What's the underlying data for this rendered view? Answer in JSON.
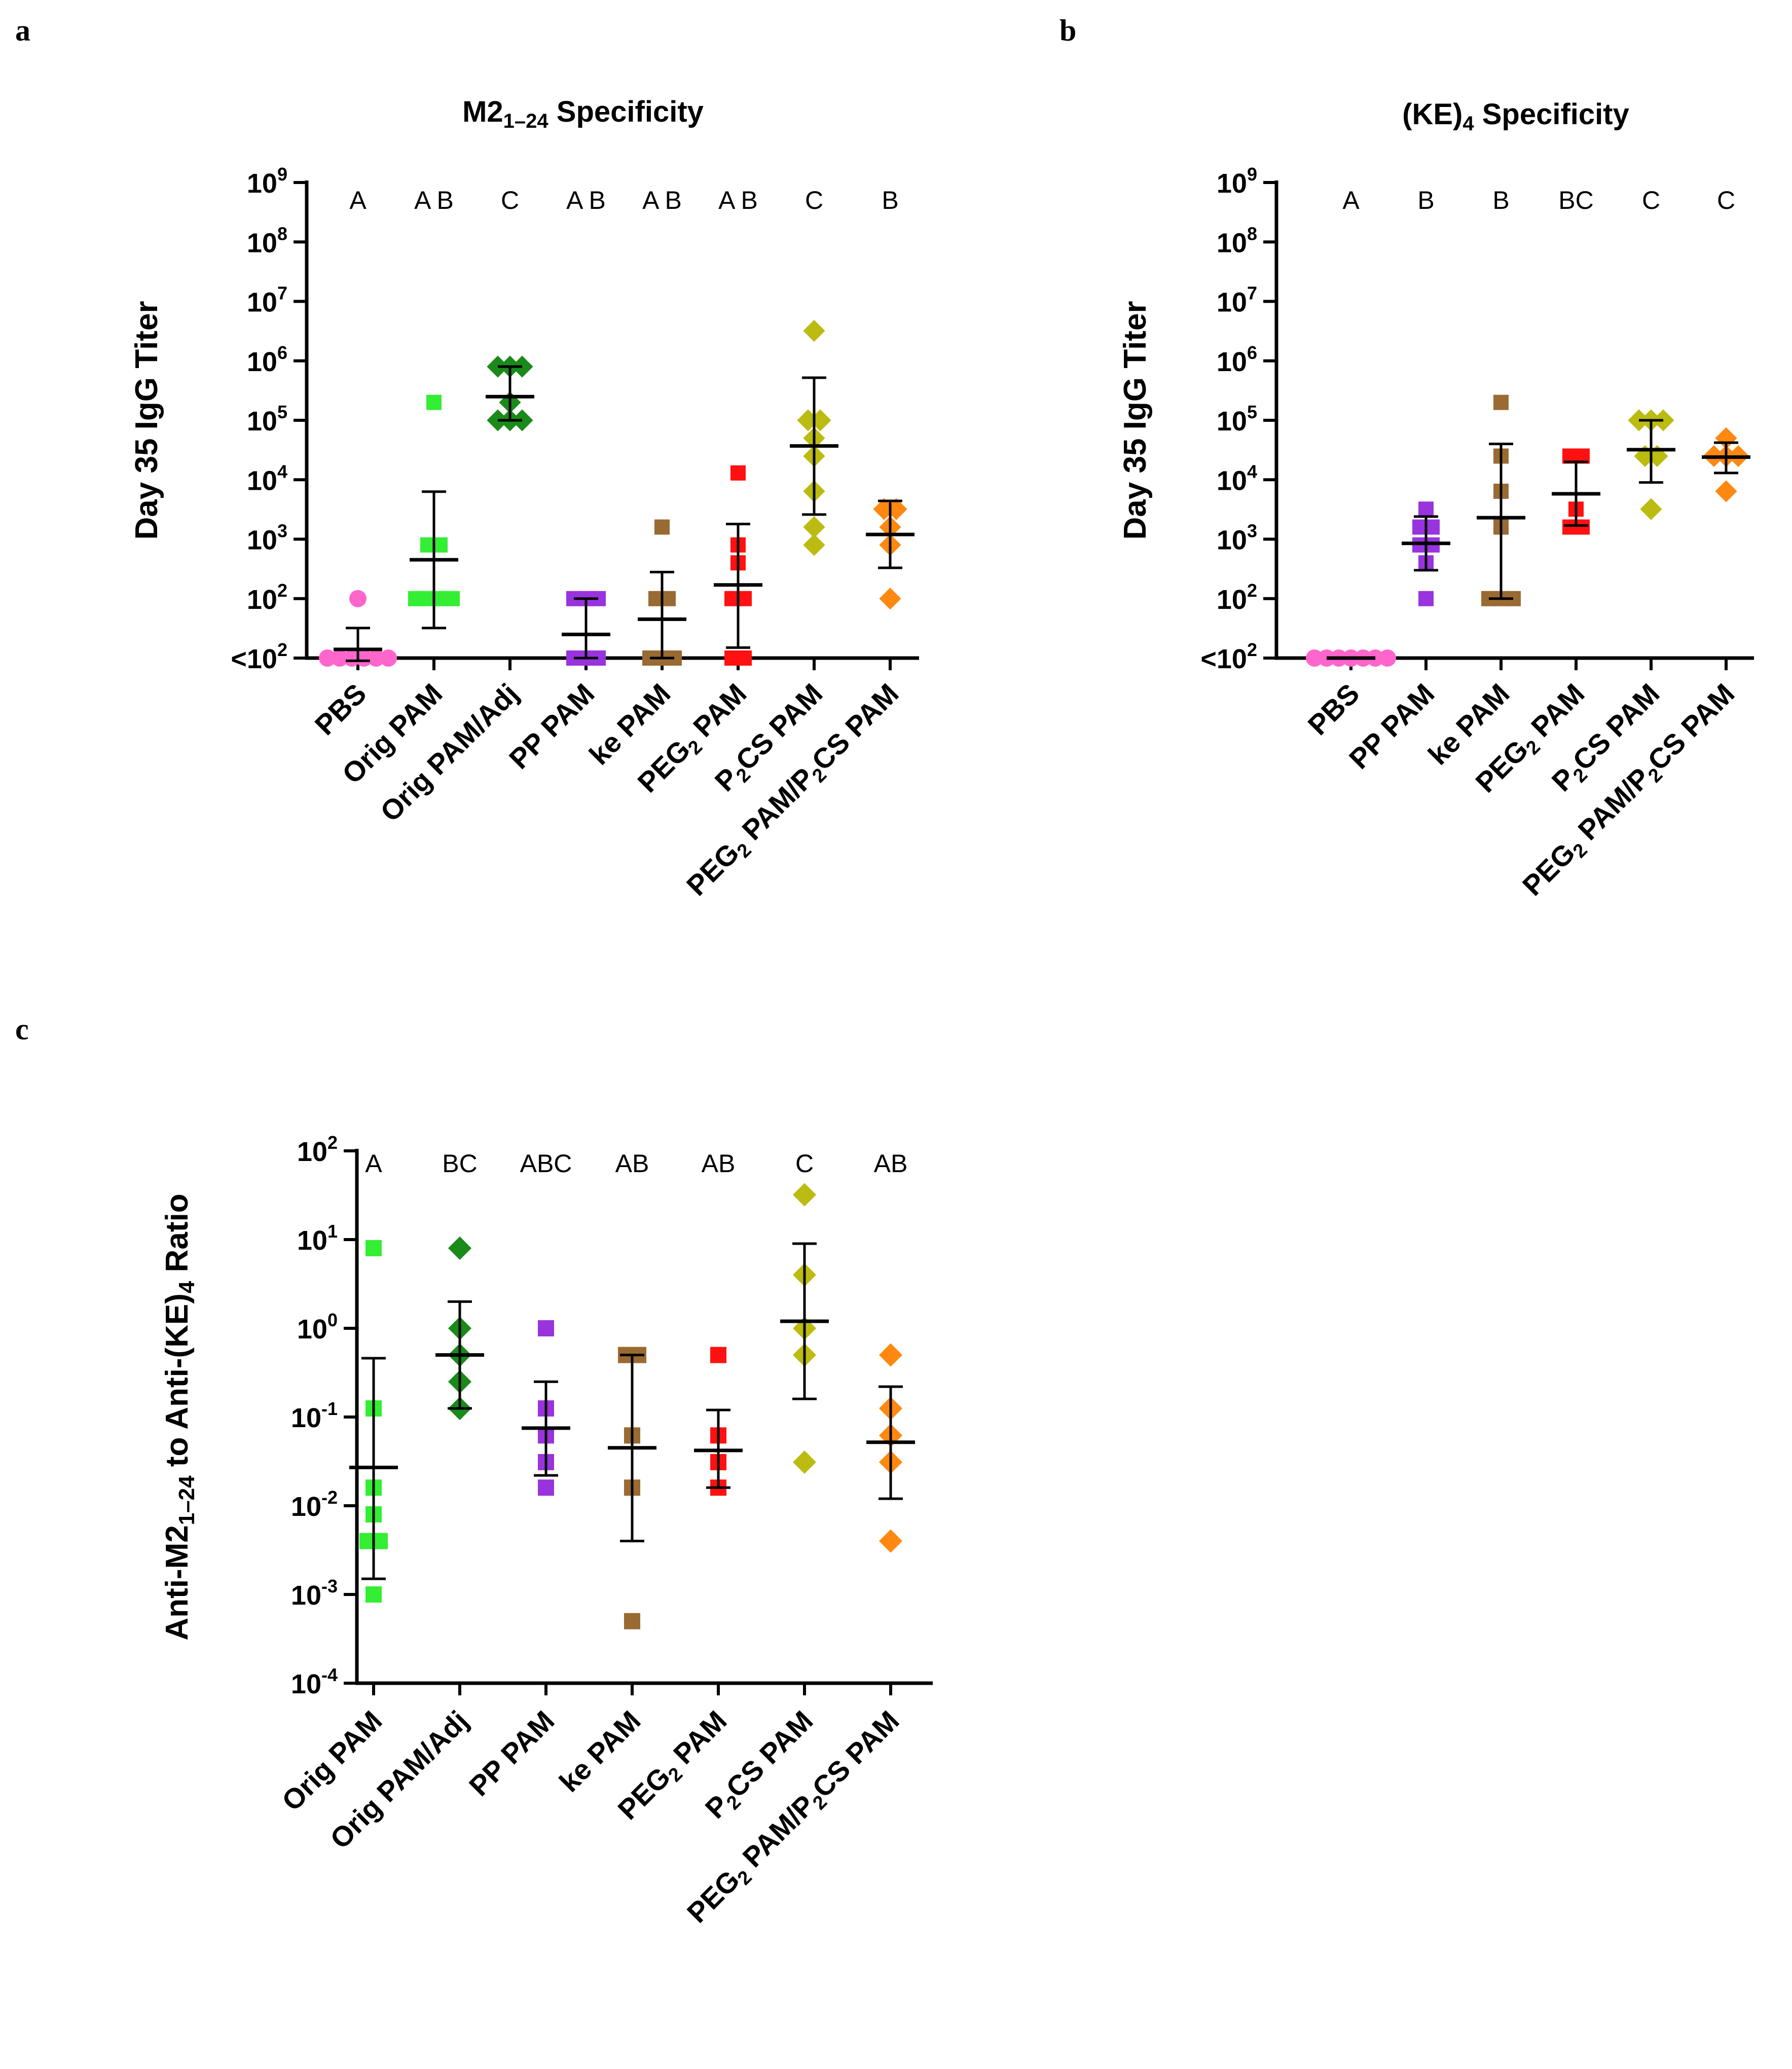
{
  "panels": [
    {
      "letter": "a",
      "title": {
        "pre": "M2",
        "sub": "1–24",
        "post": " Specificity"
      },
      "ylabel": "Day 35 IgG Titer",
      "ylim_log10": [
        1,
        9
      ],
      "yticks": [
        {
          "base": "<10",
          "exp": "2"
        },
        {
          "base": "10",
          "exp": "2"
        },
        {
          "base": "10",
          "exp": "3"
        },
        {
          "base": "10",
          "exp": "4"
        },
        {
          "base": "10",
          "exp": "5"
        },
        {
          "base": "10",
          "exp": "6"
        },
        {
          "base": "10",
          "exp": "7"
        },
        {
          "base": "10",
          "exp": "8"
        },
        {
          "base": "10",
          "exp": "9"
        }
      ]
    },
    {
      "letter": "b",
      "title": {
        "pre": "(KE)",
        "sub": "4",
        "post": " Specificity"
      },
      "ylabel": "Day 35 IgG Titer",
      "ylim_log10": [
        1,
        9
      ],
      "yticks": [
        {
          "base": "<10",
          "exp": "2"
        },
        {
          "base": "10",
          "exp": "2"
        },
        {
          "base": "10",
          "exp": "3"
        },
        {
          "base": "10",
          "exp": "4"
        },
        {
          "base": "10",
          "exp": "5"
        },
        {
          "base": "10",
          "exp": "6"
        },
        {
          "base": "10",
          "exp": "7"
        },
        {
          "base": "10",
          "exp": "8"
        },
        {
          "base": "10",
          "exp": "9"
        }
      ]
    },
    {
      "letter": "c",
      "title": {
        "pre": "",
        "sub": "",
        "post": ""
      },
      "ylabel": {
        "pre": "Anti-M2",
        "sub": "1–24",
        "mid": " to Anti-(KE)",
        "sub2": "4",
        "post": " Ratio"
      },
      "ylim_log10": [
        -4,
        2
      ],
      "yticks": [
        {
          "base": "10",
          "exp": "-4"
        },
        {
          "base": "10",
          "exp": "-3"
        },
        {
          "base": "10",
          "exp": "-2"
        },
        {
          "base": "10",
          "exp": "-1"
        },
        {
          "base": "10",
          "exp": "0"
        },
        {
          "base": "10",
          "exp": "1"
        },
        {
          "base": "10",
          "exp": "2"
        }
      ]
    }
  ],
  "chart_data": [
    {
      "type": "scatter",
      "title": "M2 1–24 Specificity",
      "ylabel": "Day 35 IgG Titer",
      "yscale": "log10",
      "ylim": [
        10,
        1000000000
      ],
      "categories": [
        {
          "pre": "PBS",
          "sub": "",
          "post": ""
        },
        {
          "pre": "Orig PAM",
          "sub": "",
          "post": ""
        },
        {
          "pre": "Orig PAM/Adj",
          "sub": "",
          "post": ""
        },
        {
          "pre": "PP PAM",
          "sub": "",
          "post": ""
        },
        {
          "pre": "ke PAM",
          "sub": "",
          "post": ""
        },
        {
          "pre": "PEG",
          "sub": "2",
          "post": " PAM"
        },
        {
          "pre": "P",
          "sub": "2",
          "post": "CS PAM"
        },
        {
          "pre": "PEG",
          "sub": "2",
          "post": " PAM/P",
          "sub2": "2",
          "post2": "CS PAM"
        }
      ],
      "series": [
        {
          "name": "PBS",
          "color": "#ff66cc",
          "marker": "circle",
          "points": [
            10,
            10,
            10,
            10,
            10,
            10,
            100
          ],
          "mean": 14,
          "err": [
            9,
            32
          ],
          "group": "A"
        },
        {
          "name": "Orig PAM",
          "color": "#33ee33",
          "marker": "square",
          "points": [
            100,
            100,
            100,
            100,
            800,
            800,
            200000
          ],
          "mean": 450,
          "err": [
            32,
            6300
          ],
          "group": "A B"
        },
        {
          "name": "Orig PAM/Adj",
          "color": "#1a8a1a",
          "marker": "diamond",
          "points": [
            100000,
            100000,
            100000,
            200000,
            800000,
            800000,
            800000
          ],
          "mean": 250000,
          "err": [
            100000,
            800000
          ],
          "group": "C"
        },
        {
          "name": "PP PAM",
          "color": "#9933dd",
          "marker": "square",
          "points": [
            10,
            10,
            10,
            100,
            100,
            100
          ],
          "mean": 25,
          "err": [
            10,
            100
          ],
          "group": "A B"
        },
        {
          "name": "ke PAM",
          "color": "#9a6a33",
          "marker": "square",
          "points": [
            10,
            10,
            10,
            100,
            100,
            1600
          ],
          "mean": 45,
          "err": [
            10,
            280
          ],
          "group": "A B"
        },
        {
          "name": "PEG2 PAM",
          "color": "#ff1111",
          "marker": "square",
          "points": [
            10,
            10,
            100,
            100,
            400,
            800,
            13000
          ],
          "mean": 170,
          "err": [
            15,
            1800
          ],
          "group": "A B"
        },
        {
          "name": "P2CS PAM",
          "color": "#bbbb11",
          "marker": "diamond",
          "points": [
            800,
            1600,
            6400,
            25000,
            50000,
            100000,
            100000,
            3200000
          ],
          "mean": 37000,
          "err": [
            2600,
            520000
          ],
          "group": "C"
        },
        {
          "name": "PEG2 PAM/P2CS PAM",
          "color": "#ff8811",
          "marker": "diamond",
          "points": [
            100,
            800,
            1600,
            3200,
            3200
          ],
          "mean": 1200,
          "err": [
            330,
            4400
          ],
          "group": "B"
        }
      ]
    },
    {
      "type": "scatter",
      "title": "(KE)4 Specificity",
      "ylabel": "Day 35 IgG Titer",
      "yscale": "log10",
      "ylim": [
        10,
        1000000000
      ],
      "categories": [
        {
          "pre": "PBS",
          "sub": "",
          "post": ""
        },
        {
          "pre": "PP PAM",
          "sub": "",
          "post": ""
        },
        {
          "pre": "ke PAM",
          "sub": "",
          "post": ""
        },
        {
          "pre": "PEG",
          "sub": "2",
          "post": " PAM"
        },
        {
          "pre": "P",
          "sub": "2",
          "post": "CS PAM"
        },
        {
          "pre": "PEG",
          "sub": "2",
          "post": " PAM/P",
          "sub2": "2",
          "post2": "CS PAM"
        }
      ],
      "series": [
        {
          "name": "PBS",
          "color": "#ff66cc",
          "marker": "circle",
          "points": [
            10,
            10,
            10,
            10,
            10,
            10,
            10
          ],
          "mean": 10,
          "err": [
            10,
            10
          ],
          "group": "A"
        },
        {
          "name": "PP PAM",
          "color": "#9933dd",
          "marker": "square",
          "points": [
            100,
            400,
            800,
            800,
            1600,
            1600,
            3200
          ],
          "mean": 850,
          "err": [
            300,
            2400
          ],
          "group": "B"
        },
        {
          "name": "ke PAM",
          "color": "#9a6a33",
          "marker": "square",
          "points": [
            100,
            100,
            100,
            1600,
            6400,
            25000,
            200000
          ],
          "mean": 2300,
          "err": [
            100,
            40000
          ],
          "group": "B"
        },
        {
          "name": "PEG2 PAM",
          "color": "#ff1111",
          "marker": "square",
          "points": [
            1600,
            1600,
            3200,
            25000,
            25000
          ],
          "mean": 5800,
          "err": [
            1700,
            20000
          ],
          "group": "BC"
        },
        {
          "name": "P2CS PAM",
          "color": "#bbbb11",
          "marker": "diamond",
          "points": [
            3200,
            25000,
            25000,
            100000,
            100000,
            100000
          ],
          "mean": 32000,
          "err": [
            9000,
            100000
          ],
          "group": "C"
        },
        {
          "name": "PEG2 PAM/P2CS PAM",
          "color": "#ff8811",
          "marker": "diamond",
          "points": [
            6400,
            25000,
            25000,
            25000,
            50000
          ],
          "mean": 24000,
          "err": [
            13000,
            42000
          ],
          "group": "C"
        }
      ]
    },
    {
      "type": "scatter",
      "title": "",
      "ylabel": "Anti-M2 1–24 to Anti-(KE)4 Ratio",
      "yscale": "log10",
      "ylim": [
        0.0001,
        100
      ],
      "categories": [
        {
          "pre": "Orig PAM",
          "sub": "",
          "post": ""
        },
        {
          "pre": "Orig PAM/Adj",
          "sub": "",
          "post": ""
        },
        {
          "pre": "PP PAM",
          "sub": "",
          "post": ""
        },
        {
          "pre": "ke PAM",
          "sub": "",
          "post": ""
        },
        {
          "pre": "PEG",
          "sub": "2",
          "post": " PAM"
        },
        {
          "pre": "P",
          "sub": "2",
          "post": "CS PAM"
        },
        {
          "pre": "PEG",
          "sub": "2",
          "post": " PAM/P",
          "sub2": "2",
          "post2": "CS PAM"
        }
      ],
      "series": [
        {
          "name": "Orig PAM",
          "color": "#33ee33",
          "marker": "square",
          "points": [
            0.001,
            0.004,
            0.004,
            0.008,
            0.016,
            0.125,
            8
          ],
          "mean": 0.027,
          "err": [
            0.0015,
            0.46
          ],
          "group": "A"
        },
        {
          "name": "Orig PAM/Adj",
          "color": "#1a8a1a",
          "marker": "diamond",
          "points": [
            0.125,
            0.25,
            0.5,
            1,
            8
          ],
          "mean": 0.5,
          "err": [
            0.125,
            2
          ],
          "group": "BC"
        },
        {
          "name": "PP PAM",
          "color": "#9933dd",
          "marker": "square",
          "points": [
            0.016,
            0.031,
            0.062,
            0.125,
            1
          ],
          "mean": 0.075,
          "err": [
            0.022,
            0.25
          ],
          "group": "ABC"
        },
        {
          "name": "ke PAM",
          "color": "#9a6a33",
          "marker": "square",
          "points": [
            0.0005,
            0.016,
            0.062,
            0.5,
            0.5
          ],
          "mean": 0.045,
          "err": [
            0.004,
            0.5
          ],
          "group": "AB"
        },
        {
          "name": "PEG2 PAM",
          "color": "#ff1111",
          "marker": "square",
          "points": [
            0.016,
            0.031,
            0.062,
            0.5
          ],
          "mean": 0.042,
          "err": [
            0.016,
            0.12
          ],
          "group": "AB"
        },
        {
          "name": "P2CS PAM",
          "color": "#bbbb11",
          "marker": "diamond",
          "points": [
            0.031,
            0.5,
            1,
            4,
            32
          ],
          "mean": 1.2,
          "err": [
            0.16,
            9
          ],
          "group": "C"
        },
        {
          "name": "PEG2 PAM/P2CS PAM",
          "color": "#ff8811",
          "marker": "diamond",
          "points": [
            0.004,
            0.031,
            0.062,
            0.125,
            0.5
          ],
          "mean": 0.052,
          "err": [
            0.012,
            0.22
          ],
          "group": "AB"
        }
      ]
    }
  ]
}
